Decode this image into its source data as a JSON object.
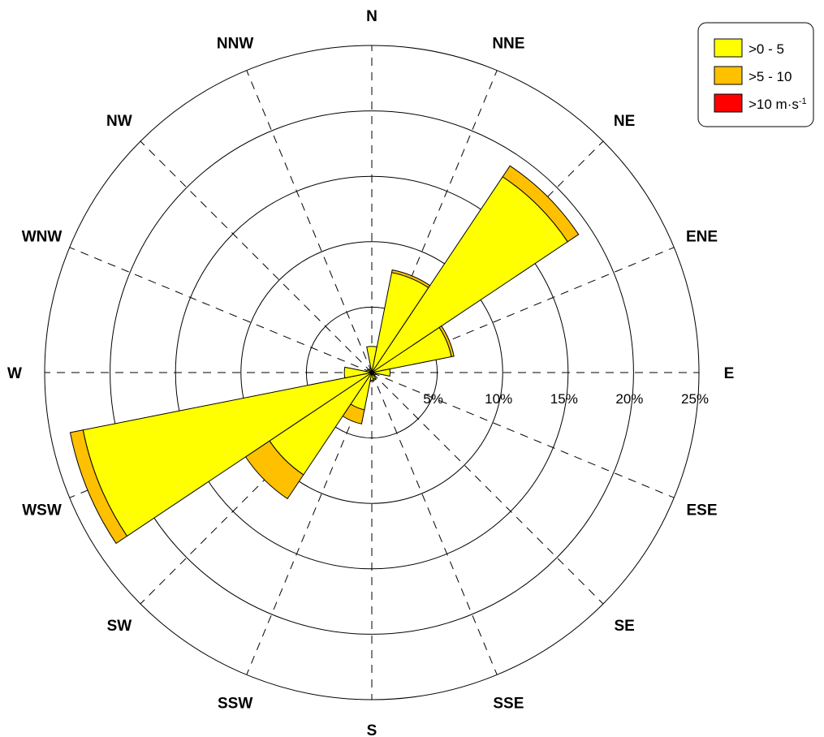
{
  "chart_data": {
    "type": "windrose",
    "directions": [
      "N",
      "NNE",
      "NE",
      "ENE",
      "E",
      "ESE",
      "SE",
      "SSE",
      "S",
      "SSW",
      "SW",
      "WSW",
      "W",
      "WNW",
      "NW",
      "NNW"
    ],
    "radial_ticks": [
      "5%",
      "10%",
      "15%",
      "20%",
      "25%"
    ],
    "radial_tick_values": [
      5,
      10,
      15,
      20,
      25
    ],
    "rmax": 25,
    "legend_position": "top-right",
    "series": [
      {
        "name": ">0 - 5",
        "color": "#ffff00",
        "values": [
          2.0,
          7.8,
          18.0,
          6.2,
          1.4,
          0.3,
          0.2,
          0.5,
          0.6,
          2.9,
          9.4,
          22.5,
          2.1,
          0.4,
          0.3,
          0.3
        ]
      },
      {
        "name": ">5 - 10",
        "color": "#ffc000",
        "values": [
          0.0,
          0.2,
          1.0,
          0.2,
          0.0,
          0.0,
          0.0,
          0.1,
          0.1,
          1.1,
          2.2,
          1.0,
          0.0,
          0.0,
          0.0,
          0.0
        ]
      },
      {
        "name": ">10 m·s",
        "superscript": "-1",
        "color": "#ff0000",
        "values": [
          0,
          0,
          0,
          0,
          0,
          0,
          0,
          0,
          0,
          0,
          0,
          0,
          0,
          0,
          0,
          0
        ]
      }
    ]
  }
}
